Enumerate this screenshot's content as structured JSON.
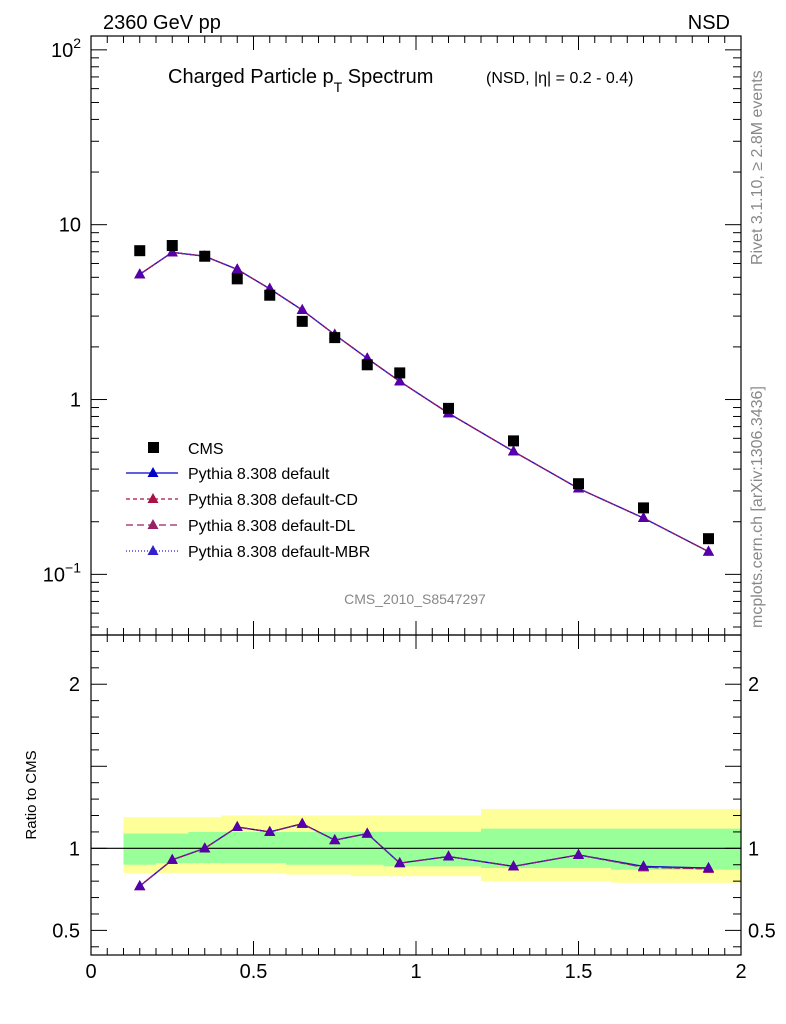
{
  "header": {
    "left": "2360 GeV pp",
    "right": "NSD"
  },
  "side": {
    "rivet": "Rivet 3.1.10, ≥ 2.8M events",
    "mcplots": "mcplots.cern.ch [arXiv:1306.3436]"
  },
  "chart_data": {
    "type": "scatter",
    "title": "Charged Particle p",
    "title_sub": "T",
    "title_rest": " Spectrum",
    "title_note": "(NSD, |η| = 0.2 - 0.4)",
    "analysis_tag": "CMS_2010_S8547297",
    "ylabel": "",
    "ratio_ylabel": "Ratio to CMS",
    "xlim": [
      0,
      2
    ],
    "ylim": [
      0.045,
      120
    ],
    "ylog": true,
    "ratio_ylim": [
      0.35,
      2.3
    ],
    "x_ticks": [
      "0",
      "0.5",
      "1",
      "1.5",
      "2"
    ],
    "y_ticks": [
      {
        "value": 100,
        "base": "10",
        "exp": "2"
      },
      {
        "value": 10,
        "base": "10",
        "exp": ""
      },
      {
        "value": 1,
        "base": "1",
        "exp": ""
      },
      {
        "value": 0.1,
        "base": "10",
        "exp": "−1"
      }
    ],
    "ratio_ticks": [
      "2",
      "1",
      "0.5"
    ],
    "legend_position": "left",
    "x": [
      0.15,
      0.25,
      0.35,
      0.45,
      0.55,
      0.65,
      0.75,
      0.85,
      0.95,
      1.1,
      1.3,
      1.5,
      1.7,
      1.9
    ],
    "x_edges": [
      0.1,
      0.2,
      0.3,
      0.4,
      0.5,
      0.6,
      0.7,
      0.8,
      0.9,
      1.0,
      1.2,
      1.4,
      1.6,
      1.8,
      2.0
    ],
    "cms": {
      "name": "CMS",
      "values": [
        7.1,
        7.6,
        6.6,
        4.9,
        3.95,
        2.8,
        2.26,
        1.58,
        1.42,
        0.89,
        0.58,
        0.33,
        0.24,
        0.16
      ]
    },
    "band": {
      "inner": [
        [
          0.9,
          1.09
        ],
        [
          0.91,
          1.09
        ],
        [
          0.91,
          1.1
        ],
        [
          0.91,
          1.1
        ],
        [
          0.91,
          1.1
        ],
        [
          0.9,
          1.1
        ],
        [
          0.9,
          1.1
        ],
        [
          0.9,
          1.1
        ],
        [
          0.89,
          1.1
        ],
        [
          0.89,
          1.1
        ],
        [
          0.88,
          1.12
        ],
        [
          0.88,
          1.12
        ],
        [
          0.87,
          1.12
        ],
        [
          0.87,
          1.12
        ]
      ],
      "outer": [
        [
          0.85,
          1.19
        ],
        [
          0.85,
          1.19
        ],
        [
          0.85,
          1.19
        ],
        [
          0.85,
          1.2
        ],
        [
          0.85,
          1.2
        ],
        [
          0.84,
          1.2
        ],
        [
          0.84,
          1.2
        ],
        [
          0.83,
          1.2
        ],
        [
          0.83,
          1.2
        ],
        [
          0.83,
          1.2
        ],
        [
          0.8,
          1.24
        ],
        [
          0.8,
          1.24
        ],
        [
          0.79,
          1.24
        ],
        [
          0.79,
          1.24
        ]
      ]
    },
    "series": [
      {
        "name": "Pythia 8.308 default",
        "color": "#0000cc",
        "dash": "",
        "values": [
          5.2,
          6.95,
          6.6,
          5.55,
          4.3,
          3.25,
          2.35,
          1.72,
          1.27,
          0.835,
          0.505,
          0.31,
          0.21,
          0.135
        ],
        "ratio": [
          0.77,
          0.93,
          1.0,
          1.13,
          1.1,
          1.15,
          1.05,
          1.09,
          0.91,
          0.95,
          0.89,
          0.96,
          0.89,
          0.88
        ]
      },
      {
        "name": "Pythia 8.308 default-CD",
        "color": "#aa1144",
        "dash": "4,3",
        "values": [
          5.2,
          6.95,
          6.6,
          5.55,
          4.3,
          3.25,
          2.35,
          1.72,
          1.27,
          0.835,
          0.505,
          0.31,
          0.21,
          0.135
        ],
        "ratio": [
          0.77,
          0.93,
          1.0,
          1.13,
          1.1,
          1.15,
          1.05,
          1.09,
          0.91,
          0.95,
          0.89,
          0.96,
          0.885,
          0.875
        ]
      },
      {
        "name": "Pythia 8.308 default-DL",
        "color": "#992266",
        "dash": "7,4",
        "values": [
          5.2,
          6.95,
          6.6,
          5.55,
          4.3,
          3.25,
          2.35,
          1.72,
          1.27,
          0.835,
          0.505,
          0.31,
          0.21,
          0.135
        ],
        "ratio": [
          0.77,
          0.93,
          1.0,
          1.13,
          1.1,
          1.15,
          1.05,
          1.09,
          0.91,
          0.95,
          0.89,
          0.96,
          0.885,
          0.875
        ]
      },
      {
        "name": "Pythia 8.308 default-MBR",
        "color": "#3322cc",
        "dash": "1,2",
        "values": [
          5.2,
          6.95,
          6.6,
          5.55,
          4.3,
          3.25,
          2.35,
          1.72,
          1.27,
          0.835,
          0.505,
          0.31,
          0.21,
          0.135
        ],
        "ratio": [
          0.77,
          0.93,
          1.0,
          1.13,
          1.1,
          1.15,
          1.05,
          1.09,
          0.91,
          0.95,
          0.89,
          0.96,
          0.89,
          0.88
        ]
      }
    ],
    "colors": {
      "band_inner": "#99ff99",
      "band_outer": "#ffff99",
      "marker": "#5500aa"
    }
  }
}
